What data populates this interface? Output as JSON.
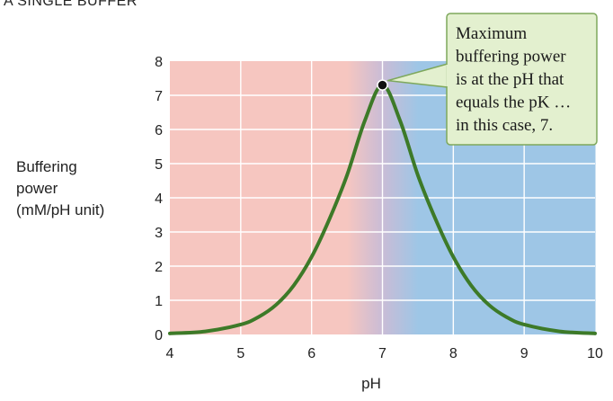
{
  "panel_title": "A  SINGLE BUFFER",
  "chart_data": {
    "type": "line",
    "title": "",
    "xlabel": "pH",
    "ylabel_lines": [
      "Buffering",
      "power",
      "(mM/pH unit)"
    ],
    "xlim": [
      4,
      10
    ],
    "ylim": [
      0,
      8
    ],
    "x_ticks": [
      4,
      5,
      6,
      7,
      8,
      9,
      10
    ],
    "y_ticks": [
      0,
      1,
      2,
      3,
      4,
      5,
      6,
      7,
      8
    ],
    "grid": true,
    "pK": 7,
    "peak": {
      "x": 7,
      "y": 7.3
    },
    "series": [
      {
        "color": "#3d7a28",
        "x": [
          4.0,
          4.5,
          5.0,
          5.25,
          5.5,
          5.75,
          6.0,
          6.25,
          6.5,
          6.75,
          7.0,
          7.25,
          7.5,
          7.75,
          8.0,
          8.25,
          8.5,
          8.75,
          9.0,
          9.5,
          10.0
        ],
        "y": [
          0.03,
          0.09,
          0.29,
          0.51,
          0.87,
          1.44,
          2.27,
          3.37,
          4.66,
          6.25,
          7.3,
          6.25,
          4.66,
          3.37,
          2.27,
          1.44,
          0.87,
          0.51,
          0.29,
          0.09,
          0.03
        ]
      }
    ],
    "background_regions": [
      {
        "from": 4,
        "to": 6.5,
        "color": "#f6c6c0"
      },
      {
        "from": 6.5,
        "to": 7.5,
        "gradient": [
          "#f6c6c0",
          "#c9bcd6",
          "#9ec6e6"
        ]
      },
      {
        "from": 7.5,
        "to": 10,
        "color": "#9ec6e6"
      }
    ],
    "annotation": {
      "lines": [
        "Maximum",
        "buffering power",
        "is at the pH that",
        "equals the pK …",
        "in this case, 7."
      ],
      "fill": "#e3f0cf",
      "border": "#7ea85c"
    }
  }
}
